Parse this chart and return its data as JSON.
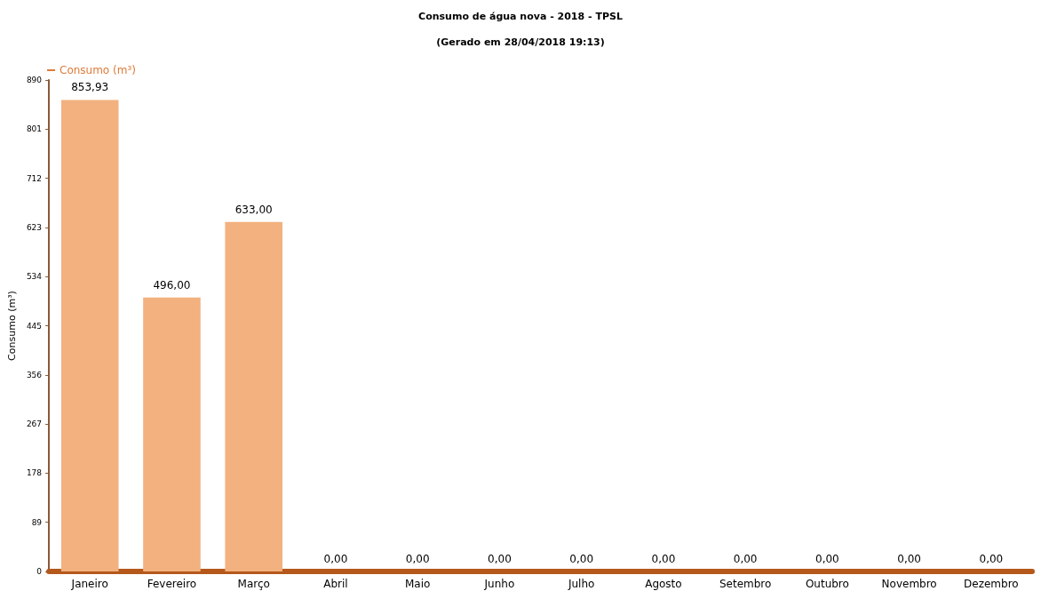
{
  "chart_data": {
    "type": "bar",
    "title": "Consumo de água nova - 2018 - TPSL",
    "subtitle": "(Gerado em 28/04/2018 19:13)",
    "ylabel": "Consumo (m³)",
    "categories": [
      "Janeiro",
      "Fevereiro",
      "Março",
      "Abril",
      "Maio",
      "Junho",
      "Julho",
      "Agosto",
      "Setembro",
      "Outubro",
      "Novembro",
      "Dezembro"
    ],
    "series": [
      {
        "name": "Consumo (m³)",
        "color": "#f2b17f",
        "values": [
          853.93,
          496,
          633,
          0,
          0,
          0,
          0,
          0,
          0,
          0,
          0,
          0
        ],
        "value_labels": [
          "853,93",
          "496,00",
          "633,00",
          "0,00",
          "0,00",
          "0,00",
          "0,00",
          "0,00",
          "0,00",
          "0,00",
          "0,00",
          "0,00"
        ]
      }
    ],
    "ylim": [
      0,
      890
    ],
    "yticks": [
      0,
      89,
      178,
      267,
      356,
      445,
      534,
      623,
      712,
      801,
      890
    ],
    "grid": false,
    "legend": "top left"
  }
}
